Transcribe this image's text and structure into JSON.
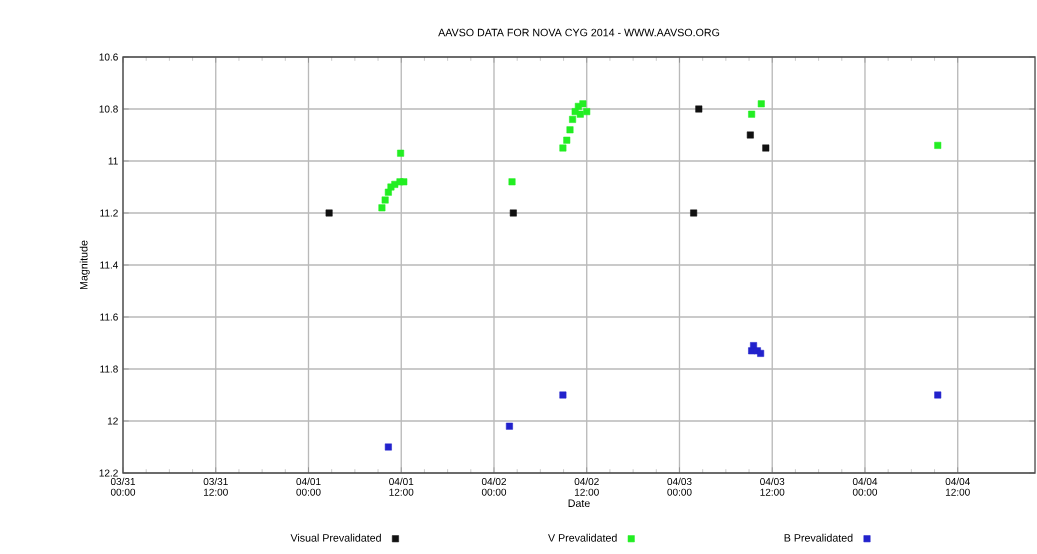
{
  "chart_data": {
    "type": "scatter",
    "title": "AAVSO DATA FOR NOVA CYG 2014 - WWW.AAVSO.ORG",
    "xlabel": "Date",
    "ylabel": "Magnitude",
    "xlim": [
      "2014-03-31T00:00",
      "2014-04-04T22:00"
    ],
    "xticks": [
      {
        "value": "2014-03-31T00:00",
        "label": "03/31 00:00"
      },
      {
        "value": "2014-03-31T12:00",
        "label": "03/31 12:00"
      },
      {
        "value": "2014-04-01T00:00",
        "label": "04/01 00:00"
      },
      {
        "value": "2014-04-01T12:00",
        "label": "04/01 12:00"
      },
      {
        "value": "2014-04-02T00:00",
        "label": "04/02 00:00"
      },
      {
        "value": "2014-04-02T12:00",
        "label": "04/02 12:00"
      },
      {
        "value": "2014-04-03T00:00",
        "label": "04/03 00:00"
      },
      {
        "value": "2014-04-03T12:00",
        "label": "04/03 12:00"
      },
      {
        "value": "2014-04-04T00:00",
        "label": "04/04 00:00"
      },
      {
        "value": "2014-04-04T12:00",
        "label": "04/04 12:00"
      }
    ],
    "ylim": [
      12.2,
      10.6
    ],
    "yticks": [
      10.6,
      10.8,
      11,
      11.2,
      11.4,
      11.6,
      11.8,
      12,
      12.2
    ],
    "grid": true,
    "legend": "bottom",
    "marker": "square",
    "series": [
      {
        "name": "Visual Prevalidated",
        "color": "#111111",
        "x": [
          "2014-04-01T02:40",
          "2014-04-02T02:30",
          "2014-04-03T01:50",
          "2014-04-03T02:30",
          "2014-04-03T09:10",
          "2014-04-03T11:10"
        ],
        "values": [
          11.2,
          11.2,
          11.2,
          10.8,
          10.9,
          10.95
        ]
      },
      {
        "name": "V Prevalidated",
        "color": "#22ee22",
        "x": [
          "2014-04-01T09:30",
          "2014-04-01T09:55",
          "2014-04-01T10:20",
          "2014-04-01T10:40",
          "2014-04-01T11:10",
          "2014-04-01T11:50",
          "2014-04-01T12:20",
          "2014-04-01T11:55",
          "2014-04-02T02:20",
          "2014-04-02T08:55",
          "2014-04-02T09:25",
          "2014-04-02T09:50",
          "2014-04-02T10:10",
          "2014-04-02T10:30",
          "2014-04-02T10:55",
          "2014-04-02T11:10",
          "2014-04-02T11:30",
          "2014-04-02T12:00",
          "2014-04-03T09:20",
          "2014-04-03T10:35",
          "2014-04-04T09:25"
        ],
        "values": [
          11.18,
          11.15,
          11.12,
          11.1,
          11.09,
          11.08,
          11.08,
          10.97,
          11.08,
          10.95,
          10.92,
          10.88,
          10.84,
          10.81,
          10.79,
          10.82,
          10.78,
          10.81,
          10.82,
          10.78,
          10.94
        ]
      },
      {
        "name": "B Prevalidated",
        "color": "#2222cc",
        "x": [
          "2014-04-01T10:20",
          "2014-04-02T02:00",
          "2014-04-02T08:55",
          "2014-04-03T09:20",
          "2014-04-03T09:35",
          "2014-04-03T10:05",
          "2014-04-03T10:30",
          "2014-04-04T09:25"
        ],
        "values": [
          12.1,
          12.02,
          11.9,
          11.73,
          11.71,
          11.73,
          11.74,
          11.9
        ]
      }
    ]
  }
}
